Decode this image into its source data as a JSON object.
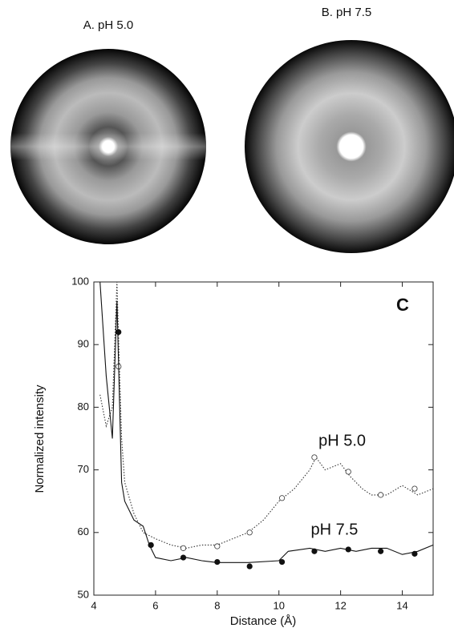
{
  "panels": [
    {
      "label": "A. pH 5.0"
    },
    {
      "label": "B. pH 7.5"
    }
  ],
  "chart_data": {
    "type": "line",
    "panel_label": "C",
    "x_label": "Distance (Å)",
    "y_label": "Normalized intensity",
    "xlim": [
      4,
      15
    ],
    "xticks": [
      4,
      6,
      8,
      10,
      12,
      14
    ],
    "ylim": [
      50,
      100
    ],
    "yticks": [
      50,
      60,
      70,
      80,
      90,
      100
    ],
    "series": [
      {
        "name": "pH 5.0",
        "color": "#333333",
        "style": "dotted",
        "marker": "open",
        "x": [
          4.2,
          4.4,
          4.6,
          4.75,
          4.9,
          5.0,
          5.3,
          5.6,
          6.0,
          6.5,
          7.0,
          7.5,
          8.0,
          8.5,
          9.0,
          9.5,
          10.0,
          10.5,
          11.0,
          11.2,
          11.5,
          12.0,
          12.3,
          12.7,
          13.0,
          13.5,
          14.0,
          14.5,
          15.0
        ],
        "values": [
          82,
          77,
          80,
          100,
          75,
          68,
          63,
          60,
          59,
          58,
          57.5,
          58,
          58,
          59,
          60,
          62,
          65,
          67,
          70,
          72,
          70,
          71,
          69,
          67,
          66,
          66,
          67.5,
          66,
          67
        ],
        "markers": {
          "x": [
            4.8,
            5.85,
            6.9,
            8.0,
            9.05,
            10.1,
            11.15,
            12.25,
            13.3,
            14.4
          ],
          "values": [
            86.5,
            58,
            57.5,
            57.8,
            60,
            65.5,
            72,
            69.7,
            66,
            67
          ]
        }
      },
      {
        "name": "pH 7.5",
        "color": "#111111",
        "style": "solid",
        "marker": "filled",
        "x": [
          4.2,
          4.4,
          4.6,
          4.75,
          4.9,
          5.0,
          5.3,
          5.6,
          5.8,
          6.0,
          6.5,
          7.0,
          7.5,
          8.0,
          9.0,
          10.0,
          10.3,
          11.0,
          11.5,
          12.0,
          12.5,
          13.0,
          13.5,
          14.0,
          14.5,
          15.0
        ],
        "values": [
          100,
          85,
          75,
          97,
          68,
          65,
          62,
          61,
          58,
          56,
          55.5,
          56,
          55.5,
          55.2,
          55.2,
          55.5,
          57,
          57.5,
          57,
          57.5,
          57,
          57.5,
          57.5,
          56.5,
          57,
          58
        ],
        "markers": {
          "x": [
            4.8,
            5.85,
            6.9,
            8.0,
            9.05,
            10.1,
            11.15,
            12.25,
            13.3,
            14.4
          ],
          "values": [
            92,
            58,
            56,
            55.3,
            54.6,
            55.3,
            57,
            57.3,
            57,
            56.6
          ]
        }
      }
    ]
  }
}
